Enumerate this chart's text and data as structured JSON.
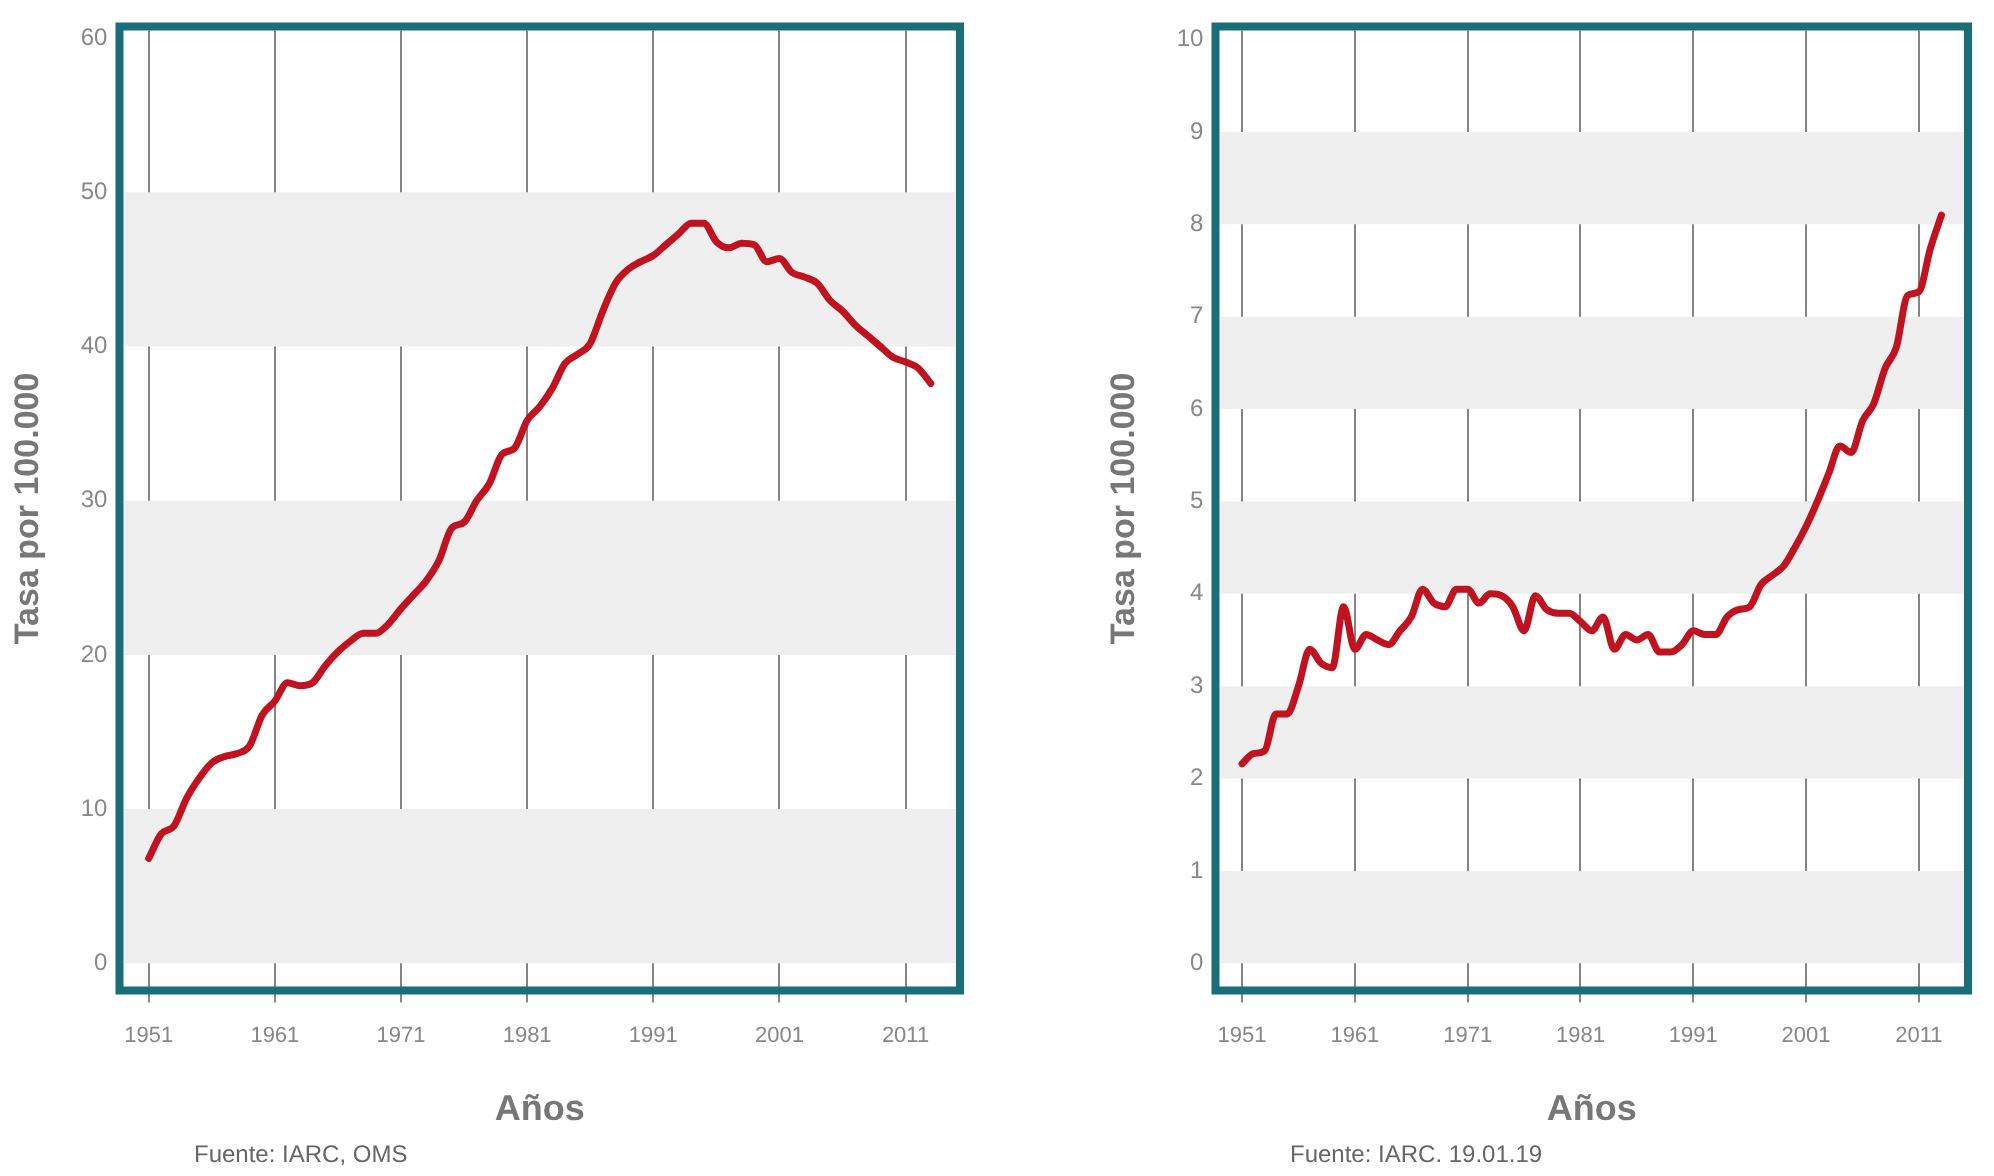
{
  "chart_data": [
    {
      "type": "line",
      "xlabel": "Años",
      "ylabel": "Tasa por 100.000",
      "annotations": [
        "Fuente: IARC, OMS"
      ],
      "x": [
        1951,
        1952,
        1953,
        1954,
        1955,
        1956,
        1957,
        1958,
        1959,
        1960,
        1961,
        1962,
        1963,
        1964,
        1965,
        1966,
        1967,
        1968,
        1969,
        1970,
        1971,
        1972,
        1973,
        1974,
        1975,
        1976,
        1977,
        1978,
        1979,
        1980,
        1981,
        1982,
        1983,
        1984,
        1985,
        1986,
        1987,
        1988,
        1989,
        1990,
        1991,
        1992,
        1993,
        1994,
        1995,
        1996,
        1997,
        1998,
        1999,
        2000,
        2001,
        2002,
        2003,
        2004,
        2005,
        2006,
        2007,
        2008,
        2009,
        2010,
        2011,
        2012,
        2013
      ],
      "series": [
        {
          "color": "#c0121f",
          "values": [
            6.8,
            8.4,
            8.9,
            10.7,
            12.0,
            13.0,
            13.4,
            13.6,
            14.1,
            16.1,
            17.0,
            18.2,
            18.0,
            18.2,
            19.3,
            20.2,
            20.9,
            21.4,
            21.4,
            22.0,
            23.0,
            23.9,
            24.8,
            26.1,
            28.2,
            28.6,
            30.0,
            31.1,
            33.0,
            33.4,
            35.2,
            36.1,
            37.3,
            38.9,
            39.5,
            40.2,
            42.3,
            44.1,
            45.0,
            45.5,
            45.9,
            46.6,
            47.3,
            48.0,
            48.0,
            46.8,
            46.4,
            46.7,
            46.6,
            45.5,
            45.7,
            44.8,
            44.5,
            44.1,
            43.0,
            42.3,
            41.4,
            40.7,
            40.0,
            39.3,
            39.0,
            38.6,
            37.6
          ]
        }
      ],
      "xlim": [
        1949,
        2015
      ],
      "xticks": [
        1951,
        1961,
        1971,
        1981,
        1991,
        2001,
        2011
      ],
      "ylim": [
        -1.5,
        60.5
      ],
      "yticks": [
        0,
        10,
        20,
        30,
        40,
        50,
        60
      ],
      "bands": [
        {
          "axis": "y",
          "from": 0,
          "to": 10,
          "color": "#efefef"
        },
        {
          "axis": "y",
          "from": 20,
          "to": 30,
          "color": "#efefef"
        },
        {
          "axis": "y",
          "from": 40,
          "to": 50,
          "color": "#efefef"
        }
      ],
      "grid": "x",
      "legend": false
    },
    {
      "type": "line",
      "xlabel": "Años",
      "ylabel": "Tasa por 100.000",
      "annotations": [
        "Fuente: IARC. 19.01.19"
      ],
      "x": [
        1951,
        1952,
        1953,
        1954,
        1955,
        1956,
        1957,
        1958,
        1959,
        1960,
        1961,
        1962,
        1963,
        1964,
        1965,
        1966,
        1967,
        1968,
        1969,
        1970,
        1971,
        1972,
        1973,
        1974,
        1975,
        1976,
        1977,
        1978,
        1979,
        1980,
        1981,
        1982,
        1983,
        1984,
        1985,
        1986,
        1987,
        1988,
        1989,
        1990,
        1991,
        1992,
        1993,
        1994,
        1995,
        1996,
        1997,
        1998,
        1999,
        2000,
        2001,
        2002,
        2003,
        2004,
        2005,
        2006,
        2007,
        2008,
        2009,
        2010,
        2011,
        2012,
        2013
      ],
      "series": [
        {
          "color": "#c0121f",
          "values": [
            2.16,
            2.27,
            2.3,
            2.7,
            2.7,
            3.0,
            3.4,
            3.25,
            3.2,
            3.86,
            3.4,
            3.56,
            3.5,
            3.45,
            3.6,
            3.75,
            4.05,
            3.9,
            3.86,
            4.05,
            4.05,
            3.9,
            4.0,
            3.98,
            3.86,
            3.6,
            3.98,
            3.83,
            3.79,
            3.79,
            3.7,
            3.6,
            3.75,
            3.4,
            3.56,
            3.5,
            3.56,
            3.37,
            3.37,
            3.45,
            3.6,
            3.56,
            3.56,
            3.75,
            3.83,
            3.86,
            4.1,
            4.2,
            4.3,
            4.5,
            4.73,
            5.0,
            5.3,
            5.6,
            5.53,
            5.87,
            6.06,
            6.44,
            6.67,
            7.23,
            7.27,
            7.73,
            8.1
          ]
        }
      ],
      "xlim": [
        1949,
        2015
      ],
      "xticks": [
        1951,
        1961,
        1971,
        1981,
        1991,
        2001,
        2011
      ],
      "ylim": [
        -0.25,
        10.1
      ],
      "yticks": [
        0,
        1,
        2,
        3,
        4,
        5,
        6,
        7,
        8,
        9,
        10
      ],
      "bands": [
        {
          "axis": "y",
          "from": 0,
          "to": 1,
          "color": "#efefef"
        },
        {
          "axis": "y",
          "from": 2,
          "to": 3,
          "color": "#efefef"
        },
        {
          "axis": "y",
          "from": 4,
          "to": 5,
          "color": "#efefef"
        },
        {
          "axis": "y",
          "from": 6,
          "to": 7,
          "color": "#efefef"
        },
        {
          "axis": "y",
          "from": 8,
          "to": 9,
          "color": "#efefef"
        }
      ],
      "grid": "x",
      "legend": false
    }
  ]
}
